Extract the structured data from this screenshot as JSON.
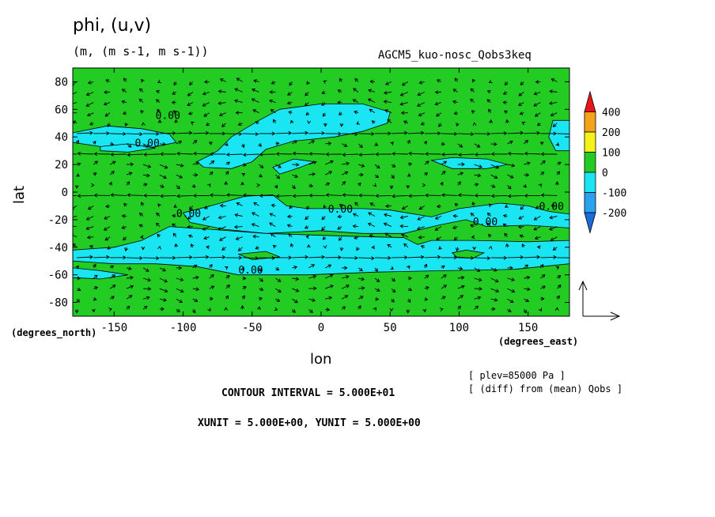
{
  "chart_data": {
    "type": "contour",
    "title": "phi, (u,v)",
    "units": "(m, (m s-1, m s-1))",
    "model": "AGCM5_kuo-nosc_Qobs3keq",
    "xlabel": "lon",
    "ylabel": "lat",
    "x_unit_label": "(degrees_east)",
    "y_unit_label": "(degrees_north)",
    "xlim": [
      -180,
      180
    ],
    "ylim": [
      -90,
      90
    ],
    "x_ticks": [
      -150,
      -100,
      -50,
      0,
      50,
      100,
      150
    ],
    "x_tick_labels": [
      "-150",
      "-100",
      "-50",
      "0",
      "50",
      "100",
      "150"
    ],
    "y_ticks": [
      80,
      60,
      40,
      20,
      0,
      -20,
      -40,
      -60,
      -80
    ],
    "y_tick_labels": [
      "80",
      "60",
      "40",
      "20",
      "0",
      "-20",
      "-40",
      "-60",
      "-80"
    ],
    "contour_labels": [
      "0.00",
      "0.00",
      "0.00",
      "0.00",
      "0.00",
      "0.00",
      "0.00"
    ],
    "colorbar": {
      "labels": [
        "400",
        "200",
        "100",
        "0",
        "-100",
        "-200"
      ],
      "colors": [
        "#e8161b",
        "#f5a31a",
        "#f4f218",
        "#22cc22",
        "#19e6f2",
        "#2aa3ee",
        "#1c6bd8"
      ]
    },
    "fill_colors": {
      "positive": "#22cc22",
      "negative": "#19e6f2"
    },
    "zero_contour_color": "#000000",
    "footer": {
      "plev": "[ plev=85000 Pa ]",
      "diff": "[ (diff) from (mean) Qobs ]",
      "contour_interval": "CONTOUR INTERVAL = 5.000E+01",
      "vector_units": "XUNIT = 5.000E+00, YUNIT = 5.000E+00"
    }
  }
}
